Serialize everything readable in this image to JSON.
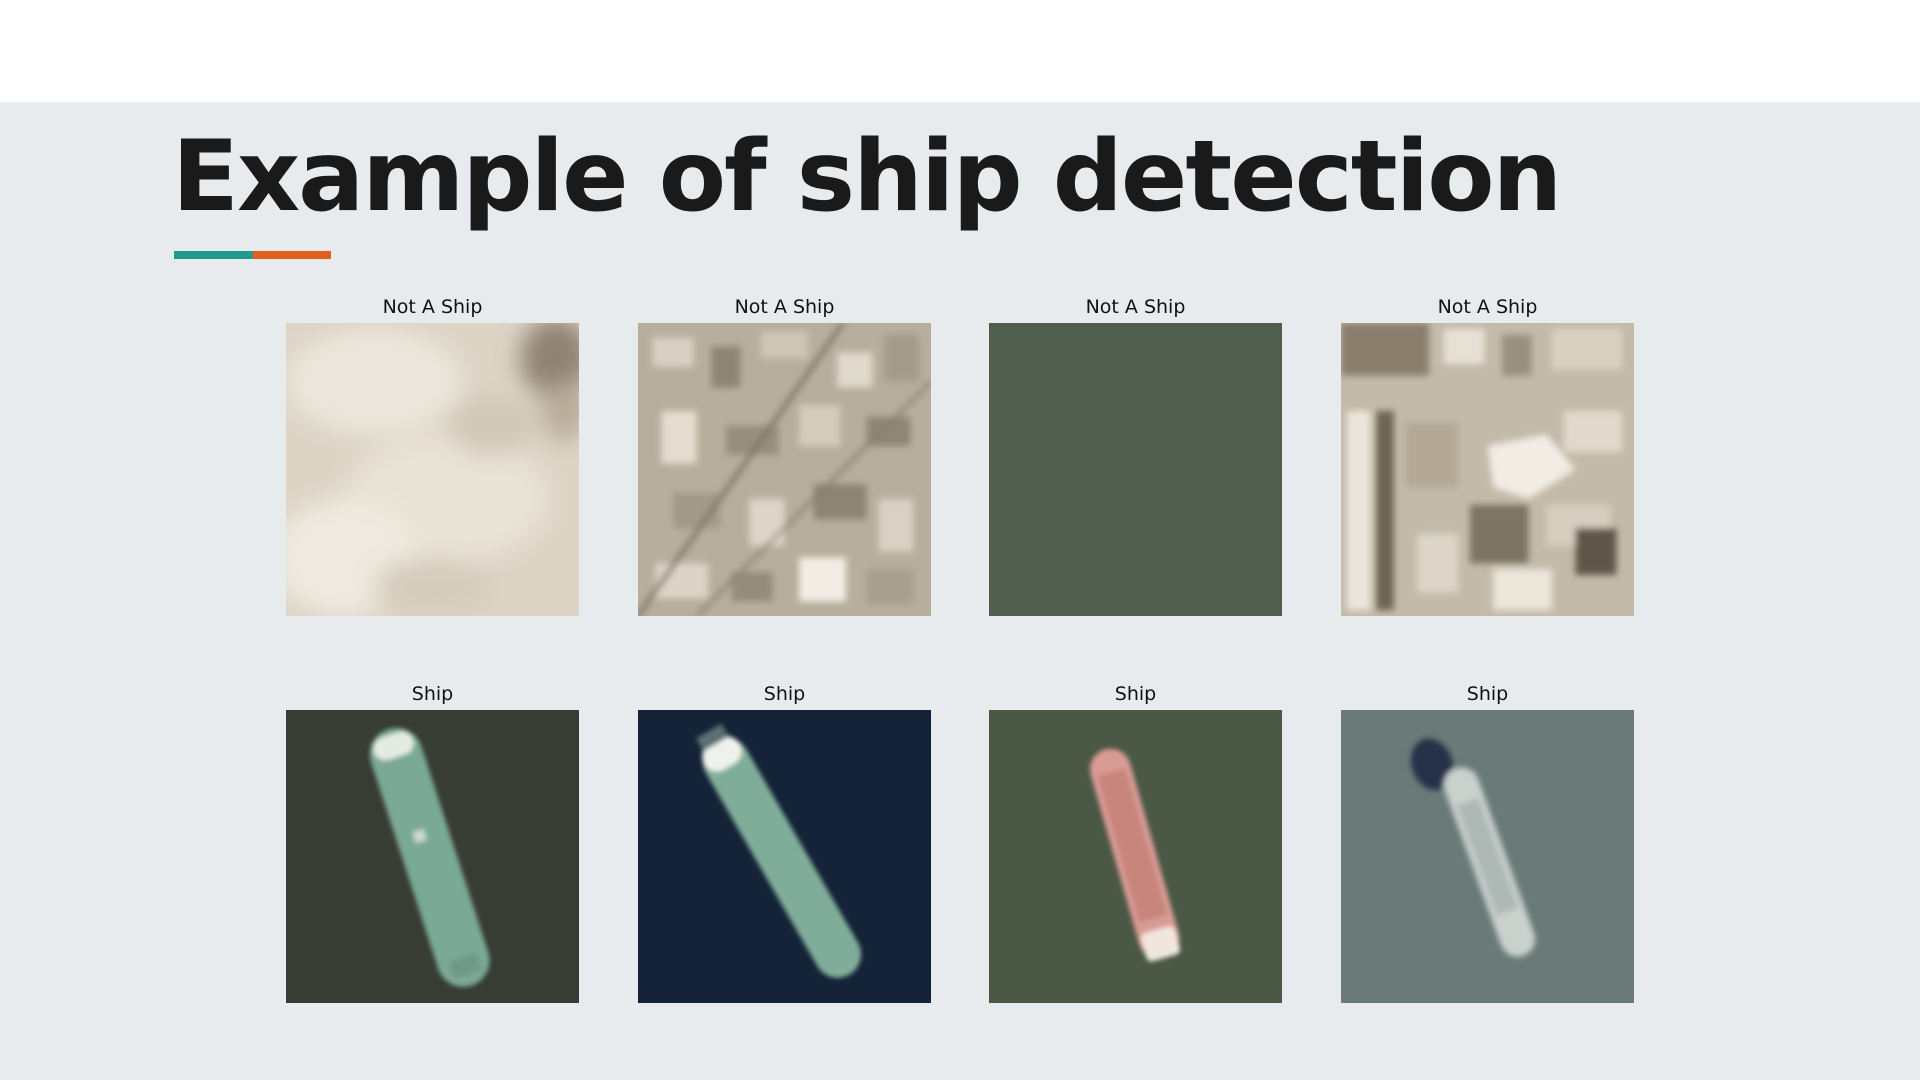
{
  "slide": {
    "title": "Example of ship detection",
    "accent_colors": [
      "#1f9a8c",
      "#e2601f"
    ]
  },
  "tiles": [
    {
      "label": "Not A Ship",
      "scene": "clouds"
    },
    {
      "label": "Not A Ship",
      "scene": "urban area"
    },
    {
      "label": "Not A Ship",
      "scene": "open water"
    },
    {
      "label": "Not A Ship",
      "scene": "coastal buildings"
    },
    {
      "label": "Ship",
      "scene": "green tanker on dark water"
    },
    {
      "label": "Ship",
      "scene": "green tanker on navy water"
    },
    {
      "label": "Ship",
      "scene": "red vessel on olive water"
    },
    {
      "label": "Ship",
      "scene": "white vessel on grey-blue water"
    }
  ]
}
